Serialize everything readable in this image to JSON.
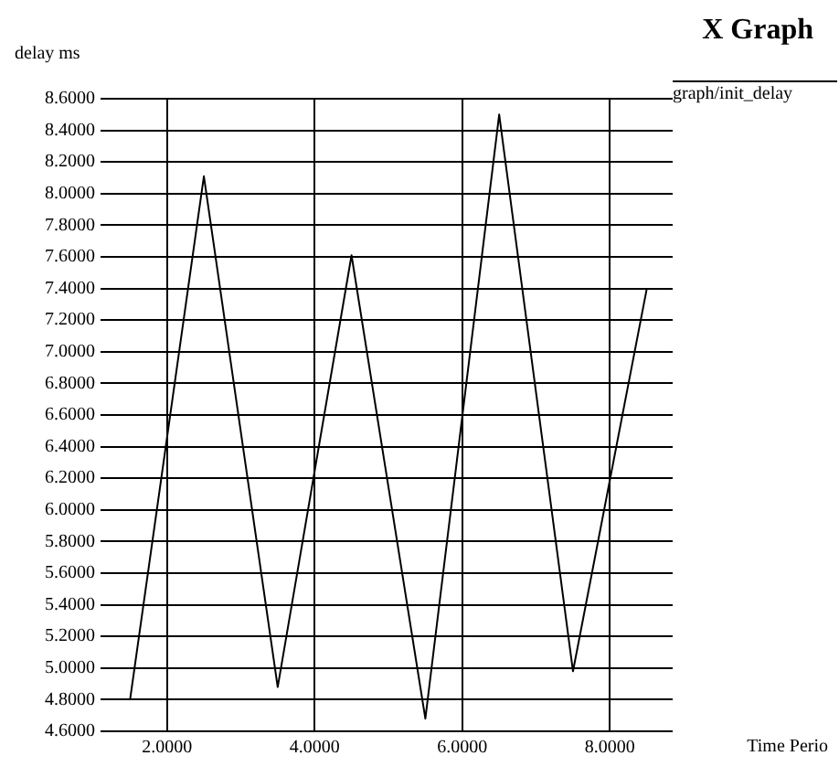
{
  "chart_data": {
    "type": "line",
    "title": "X Graph",
    "xlabel": "Time Perio",
    "ylabel": "delay ms",
    "x": [
      1.5,
      2.5,
      3.5,
      4.5,
      5.5,
      6.5,
      7.5,
      8.5
    ],
    "series": [
      {
        "name": "graph/init_delay",
        "color": "#000000",
        "values": [
          4.8,
          8.11,
          4.88,
          7.61,
          4.68,
          8.5,
          4.98,
          7.4
        ]
      }
    ],
    "xlim": [
      1.1,
      8.85
    ],
    "xticks": [
      {
        "value": 2,
        "label": "2.0000"
      },
      {
        "value": 4,
        "label": "4.0000"
      },
      {
        "value": 6,
        "label": "6.0000"
      },
      {
        "value": 8,
        "label": "8.0000"
      }
    ],
    "ylim": [
      4.6,
      8.6
    ],
    "yticks": [
      {
        "value": 4.6,
        "label": "4.6000"
      },
      {
        "value": 4.8,
        "label": "4.8000"
      },
      {
        "value": 5.0,
        "label": "5.0000"
      },
      {
        "value": 5.2,
        "label": "5.2000"
      },
      {
        "value": 5.4,
        "label": "5.4000"
      },
      {
        "value": 5.6,
        "label": "5.6000"
      },
      {
        "value": 5.8,
        "label": "5.8000"
      },
      {
        "value": 6.0,
        "label": "6.0000"
      },
      {
        "value": 6.2,
        "label": "6.2000"
      },
      {
        "value": 6.4,
        "label": "6.4000"
      },
      {
        "value": 6.6,
        "label": "6.6000"
      },
      {
        "value": 6.8,
        "label": "6.8000"
      },
      {
        "value": 7.0,
        "label": "7.0000"
      },
      {
        "value": 7.2,
        "label": "7.2000"
      },
      {
        "value": 7.4,
        "label": "7.4000"
      },
      {
        "value": 7.6,
        "label": "7.6000"
      },
      {
        "value": 7.8,
        "label": "7.8000"
      },
      {
        "value": 8.0,
        "label": "8.0000"
      },
      {
        "value": 8.2,
        "label": "8.2000"
      },
      {
        "value": 8.4,
        "label": "8.4000"
      },
      {
        "value": 8.6,
        "label": "8.6000"
      }
    ],
    "grid": true,
    "legend": "top right",
    "marker": "none",
    "line_style": "solid"
  }
}
